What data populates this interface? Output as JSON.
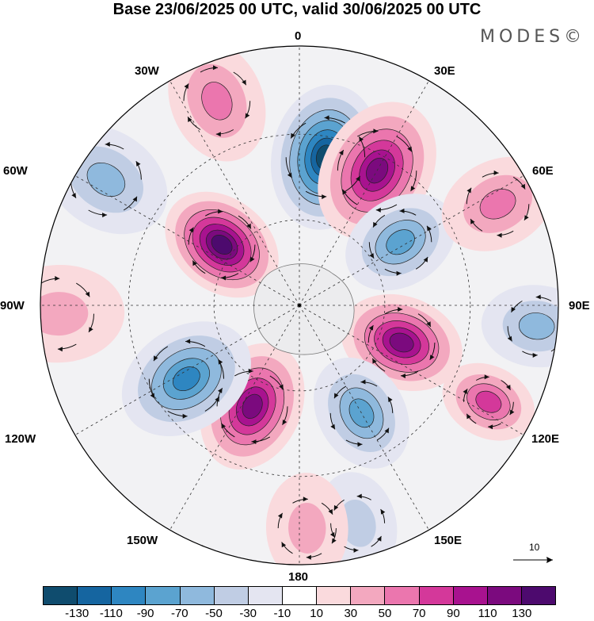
{
  "title": "Base 23/06/2025 00 UTC, valid 30/06/2025 00 UTC",
  "brand": "MODES©",
  "lon_labels": {
    "l0": "0",
    "l30e": "30E",
    "l60e": "60E",
    "l90e": "90E",
    "l120e": "120E",
    "l150e": "150E",
    "l180": "180",
    "l150w": "150W",
    "l120w": "120W",
    "l90w": "90W",
    "l60w": "60W",
    "l30w": "30W"
  },
  "vector_reference": {
    "label": "10"
  },
  "colorbar": {
    "colors": [
      "#0f4c6e",
      "#1565a0",
      "#2e86c1",
      "#5ba3d0",
      "#8fb9dd",
      "#c0cde4",
      "#e4e5f1",
      "#ffffff",
      "#fadadd",
      "#f3a8bf",
      "#eb76ae",
      "#d4389a",
      "#a8128f",
      "#7b0a7e",
      "#4d0a6e"
    ],
    "ticks": [
      "-130",
      "-110",
      "-90",
      "-70",
      "-50",
      "-30",
      "-10",
      "10",
      "30",
      "50",
      "70",
      "90",
      "110",
      "130"
    ]
  },
  "anomaly_centers": [
    {
      "lon": 10,
      "r": 0.58,
      "value": -135,
      "size": 0.19
    },
    {
      "lon": 30,
      "r": 0.6,
      "value": 130,
      "size": 0.19
    },
    {
      "lon": 58,
      "r": 0.46,
      "value": -80,
      "size": 0.15
    },
    {
      "lon": 63,
      "r": 0.86,
      "value": 60,
      "size": 0.15
    },
    {
      "lon": 95,
      "r": 0.92,
      "value": -60,
      "size": 0.14
    },
    {
      "lon": 110,
      "r": 0.42,
      "value": 115,
      "size": 0.16
    },
    {
      "lon": 117,
      "r": 0.82,
      "value": 75,
      "size": 0.12
    },
    {
      "lon": 150,
      "r": 0.48,
      "value": -75,
      "size": 0.15
    },
    {
      "lon": 165,
      "r": 0.87,
      "value": -40,
      "size": 0.13
    },
    {
      "lon": 178,
      "r": 0.86,
      "value": 35,
      "size": 0.14
    },
    {
      "lon": 205,
      "r": 0.43,
      "value": 125,
      "size": 0.17
    },
    {
      "lon": 237,
      "r": 0.52,
      "value": -100,
      "size": 0.18
    },
    {
      "lon": 268,
      "r": 0.93,
      "value": 50,
      "size": 0.17
    },
    {
      "lon": 308,
      "r": 0.38,
      "value": 135,
      "size": 0.16
    },
    {
      "lon": 303,
      "r": 0.89,
      "value": -70,
      "size": 0.17
    },
    {
      "lon": 338,
      "r": 0.85,
      "value": 60,
      "size": 0.16
    }
  ]
}
